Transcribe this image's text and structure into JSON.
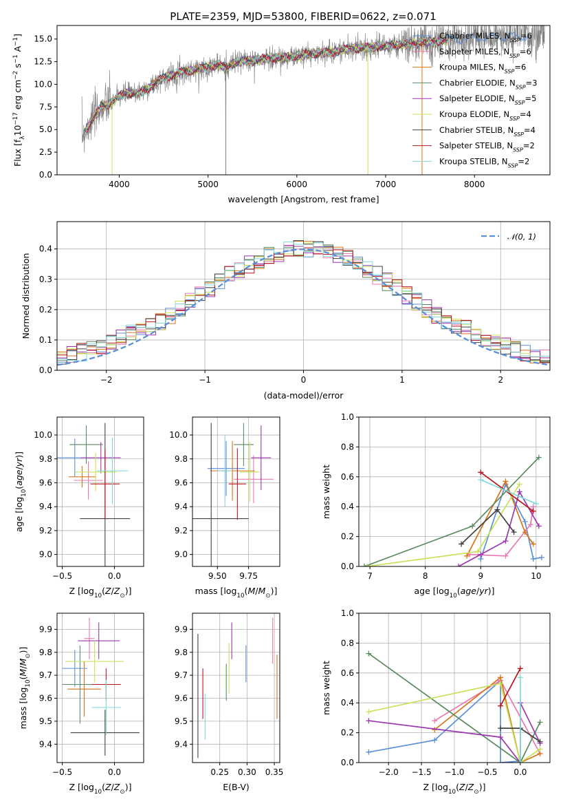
{
  "figure": {
    "title": "PLATE=2359, MJD=53800, FIBERID=0622, z=0.071"
  },
  "colors": {
    "spectrum": "#808080",
    "gaussian": "#5b8ed8",
    "grid": "#b0b0b0"
  },
  "chart_data": [
    {
      "id": "spectrum",
      "type": "line",
      "title": "PLATE=2359, MJD=53800, FIBERID=0622, z=0.071",
      "xlabel": "wavelength [Angstrom, rest frame]",
      "ylabel": "Flux [f_λ10^-17 erg cm^-2 s^-1 A^-1]",
      "xlim": [
        3300,
        8850
      ],
      "ylim": [
        0,
        16.5
      ],
      "xticks": [
        4000,
        5000,
        6000,
        7000,
        8000
      ],
      "yticks": [
        0.0,
        2.5,
        5.0,
        7.5,
        10.0,
        12.5,
        15.0
      ],
      "grid": false,
      "legend_position": "upper-right",
      "spectrum_x": [
        3580,
        3700,
        3800,
        3900,
        4000,
        4100,
        4200,
        4300,
        4400,
        4500,
        4600,
        4700,
        4800,
        4900,
        5000,
        5100,
        5200,
        5300,
        5400,
        5500,
        5600,
        5700,
        5800,
        5900,
        6000,
        6100,
        6200,
        6300,
        6400,
        6500,
        6600,
        6700,
        6800,
        6900,
        7000,
        7100,
        7200,
        7300,
        7400,
        7500,
        7600,
        7700,
        7800,
        7900,
        8000,
        8100,
        8200,
        8300,
        8400,
        8500,
        8600,
        8700,
        8800
      ],
      "spectrum_y": [
        4.3,
        6.2,
        7.5,
        7.9,
        8.7,
        9.0,
        9.0,
        9.4,
        10.1,
        10.7,
        11.0,
        11.4,
        11.5,
        11.7,
        11.9,
        12.2,
        11.8,
        12.4,
        12.6,
        12.6,
        12.7,
        12.9,
        12.9,
        13.0,
        13.1,
        13.3,
        13.4,
        13.5,
        13.6,
        13.8,
        13.9,
        14.0,
        14.0,
        14.2,
        14.2,
        14.3,
        14.4,
        14.5,
        14.6,
        14.7,
        14.8,
        14.9,
        15.0,
        15.0,
        15.1,
        15.1,
        15.2,
        15.2,
        15.2,
        15.3,
        15.3,
        15.4,
        15.4
      ],
      "series": [
        {
          "name": "Chabrier MILES, N_SSP=6",
          "color": "#5b8ed8"
        },
        {
          "name": "Salpeter MILES, N_SSP=6",
          "color": "#e879b0"
        },
        {
          "name": "Kroupa MILES, N_SSP=6",
          "color": "#d9731a"
        },
        {
          "name": "Chabrier ELODIE, N_SSP=3",
          "color": "#5a8a5f"
        },
        {
          "name": "Salpeter ELODIE, N_SSP=5",
          "color": "#9b35b0"
        },
        {
          "name": "Kroupa ELODIE, N_SSP=4",
          "color": "#c6e25a"
        },
        {
          "name": "Chabrier STELIB, N_SSP=4",
          "color": "#404040"
        },
        {
          "name": "Salpeter STELIB, N_SSP=2",
          "color": "#b8141c"
        },
        {
          "name": "Kroupa STELIB, N_SSP=2",
          "color": "#7fd8d8"
        }
      ]
    },
    {
      "id": "residuals",
      "type": "histogram",
      "xlabel": "(data-model)/error",
      "ylabel": "Normed distribution",
      "xlim": [
        -2.5,
        2.5
      ],
      "ylim": [
        0,
        0.49
      ],
      "xticks": [
        -2,
        -1,
        0,
        1,
        2
      ],
      "yticks": [
        0.0,
        0.1,
        0.2,
        0.3,
        0.4
      ],
      "grid": true,
      "legend": "𝒩(0, 1)",
      "legend_position": "upper-right",
      "bin_width": 0.1,
      "bin_start": -2.5,
      "gaussian": {
        "mu": 0,
        "sigma": 1
      }
    },
    {
      "id": "age_vs_Z",
      "type": "errorbar",
      "xlabel": "Z [log10(Z/Z⊙)]",
      "ylabel": "age [log10(age/yr)]",
      "xlim": [
        -0.55,
        0.28
      ],
      "ylim": [
        8.9,
        10.15
      ],
      "xticks": [
        -0.5,
        0.0
      ],
      "xticklabels": [
        "−0.5",
        "0.0"
      ],
      "yticks": [
        9.0,
        9.2,
        9.4,
        9.6,
        9.8,
        10.0
      ],
      "grid": true,
      "points": [
        {
          "x": -0.38,
          "xerr": 0.2,
          "y": 9.81,
          "yerr": 0.16
        },
        {
          "x": -0.25,
          "xerr": 0.14,
          "y": 9.62,
          "yerr": 0.16
        },
        {
          "x": -0.31,
          "xerr": 0.13,
          "y": 9.65,
          "yerr": 0.09
        },
        {
          "x": -0.27,
          "xerr": 0.16,
          "y": 9.92,
          "yerr": 0.16
        },
        {
          "x": -0.13,
          "xerr": 0.19,
          "y": 9.81,
          "yerr": 0.13
        },
        {
          "x": -0.18,
          "xerr": 0.2,
          "y": 9.69,
          "yerr": 0.16
        },
        {
          "x": -0.09,
          "xerr": 0.24,
          "y": 9.3,
          "yerr": 0.8
        },
        {
          "x": -0.09,
          "xerr": 0.14,
          "y": 9.59,
          "yerr": 0.29
        },
        {
          "x": -0.02,
          "xerr": 0.15,
          "y": 9.7,
          "yerr": 0.28
        }
      ]
    },
    {
      "id": "age_vs_mass",
      "type": "errorbar",
      "xlabel": "mass [log10(M/M⊙)]",
      "ylabel": "",
      "xlim": [
        9.3,
        10.0
      ],
      "ylim": [
        8.9,
        10.15
      ],
      "xticks": [
        9.5,
        9.75
      ],
      "yticks": [
        9.0,
        9.2,
        9.4,
        9.6,
        9.8,
        10.0
      ],
      "grid": true,
      "points": [
        {
          "x": 9.57,
          "xerr": 0.15,
          "y": 9.72,
          "yerr": 0.23
        },
        {
          "x": 9.79,
          "xerr": 0.16,
          "y": 9.63,
          "yerr": 0.2
        },
        {
          "x": 9.62,
          "xerr": 0.18,
          "y": 9.7,
          "yerr": 0.25
        },
        {
          "x": 9.71,
          "xerr": 0.08,
          "y": 9.92,
          "yerr": 0.18
        },
        {
          "x": 9.85,
          "xerr": 0.08,
          "y": 9.81,
          "yerr": 0.27
        },
        {
          "x": 9.76,
          "xerr": 0.08,
          "y": 9.69,
          "yerr": 0.25
        },
        {
          "x": 9.45,
          "xerr": 0.3,
          "y": 9.3,
          "yerr": 0.8
        },
        {
          "x": 9.66,
          "xerr": 0.07,
          "y": 9.59,
          "yerr": 0.3
        },
        {
          "x": 9.56,
          "xerr": 0.06,
          "y": 9.7,
          "yerr": 0.3
        }
      ]
    },
    {
      "id": "weight_vs_age",
      "type": "line",
      "xlabel": "age [log10(age/yr)]",
      "ylabel": "mass weight",
      "xlim": [
        6.8,
        10.25
      ],
      "ylim": [
        0,
        1.0
      ],
      "xticks": [
        7,
        8,
        9,
        10
      ],
      "yticks": [
        0.0,
        0.2,
        0.4,
        0.6,
        0.8,
        1.0
      ],
      "grid": true,
      "series": [
        {
          "color": "#5b8ed8",
          "x": [
            9.0,
            9.45,
            9.8,
            9.95,
            10.1
          ],
          "y": [
            0.05,
            0.55,
            0.3,
            0.05,
            0.06
          ]
        },
        {
          "color": "#e879b0",
          "x": [
            8.8,
            9.45,
            9.9,
            9.95
          ],
          "y": [
            0.08,
            0.07,
            0.28,
            0.4
          ]
        },
        {
          "color": "#d9731a",
          "x": [
            8.75,
            9.45,
            9.8,
            9.95
          ],
          "y": [
            0.07,
            0.57,
            0.23,
            0.15
          ]
        },
        {
          "color": "#5a8a5f",
          "x": [
            6.9,
            8.85,
            10.05
          ],
          "y": [
            0.0,
            0.27,
            0.73
          ]
        },
        {
          "color": "#9b35b0",
          "x": [
            8.6,
            9.0,
            9.45,
            9.7,
            10.05
          ],
          "y": [
            0.0,
            0.08,
            0.17,
            0.5,
            0.27
          ]
        },
        {
          "color": "#c6e25a",
          "x": [
            6.95,
            8.95,
            9.7
          ],
          "y": [
            0.0,
            0.1,
            0.55
          ]
        },
        {
          "color": "#404040",
          "x": [
            8.65,
            9.3,
            9.6
          ],
          "y": [
            0.15,
            0.38,
            0.23
          ]
        },
        {
          "color": "#b8141c",
          "x": [
            9.0,
            9.95
          ],
          "y": [
            0.63,
            0.37
          ]
        },
        {
          "color": "#7fd8d8",
          "x": [
            9.0,
            10.0
          ],
          "y": [
            0.58,
            0.42
          ]
        }
      ]
    },
    {
      "id": "mass_vs_Z",
      "type": "errorbar",
      "xlabel": "Z [log10(Z/Z⊙)]",
      "ylabel": "mass [log10(M/M⊙)]",
      "xlim": [
        -0.55,
        0.28
      ],
      "ylim": [
        9.32,
        9.97
      ],
      "xticks": [
        -0.5,
        0.0
      ],
      "xticklabels": [
        "−0.5",
        "0.0"
      ],
      "yticks": [
        9.4,
        9.5,
        9.6,
        9.7,
        9.8,
        9.9
      ],
      "grid": true,
      "points": [
        {
          "x": -0.38,
          "xerr": 0.12,
          "y": 9.73,
          "yerr": 0.08
        },
        {
          "x": -0.24,
          "xerr": 0.05,
          "y": 9.86,
          "yerr": 0.09
        },
        {
          "x": -0.29,
          "xerr": 0.16,
          "y": 9.64,
          "yerr": 0.12
        },
        {
          "x": -0.33,
          "xerr": 0.17,
          "y": 9.66,
          "yerr": 0.17
        },
        {
          "x": -0.15,
          "xerr": 0.2,
          "y": 9.85,
          "yerr": 0.08
        },
        {
          "x": -0.19,
          "xerr": 0.28,
          "y": 9.76,
          "yerr": 0.09
        },
        {
          "x": -0.09,
          "xerr": 0.33,
          "y": 9.45,
          "yerr": 0.1
        },
        {
          "x": -0.08,
          "xerr": 0.14,
          "y": 9.66,
          "yerr": 0.07
        },
        {
          "x": -0.08,
          "xerr": 0.14,
          "y": 9.56,
          "yerr": 0.12
        }
      ]
    },
    {
      "id": "mass_vs_ebv",
      "type": "errorbar",
      "xlabel": "E(B-V)",
      "ylabel": "",
      "xlim": [
        0.2,
        0.36
      ],
      "ylim": [
        9.32,
        9.97
      ],
      "xticks": [
        0.25,
        0.3,
        0.35
      ],
      "yticks": [
        9.4,
        9.5,
        9.6,
        9.7,
        9.8,
        9.9
      ],
      "grid": true,
      "points": [
        {
          "x": 0.298,
          "xerr": 0,
          "y": 9.75,
          "yerr": 0.08
        },
        {
          "x": 0.347,
          "xerr": 0,
          "y": 9.85,
          "yerr": 0.1
        },
        {
          "x": 0.355,
          "xerr": 0,
          "y": 9.65,
          "yerr": 0.14
        },
        {
          "x": 0.262,
          "xerr": 0,
          "y": 9.67,
          "yerr": 0.08
        },
        {
          "x": 0.272,
          "xerr": 0,
          "y": 9.85,
          "yerr": 0.08
        },
        {
          "x": 0.267,
          "xerr": 0,
          "y": 9.73,
          "yerr": 0.11
        },
        {
          "x": 0.21,
          "xerr": 0,
          "y": 9.61,
          "yerr": 0.27
        },
        {
          "x": 0.219,
          "xerr": 0,
          "y": 9.62,
          "yerr": 0.11
        },
        {
          "x": 0.223,
          "xerr": 0,
          "y": 9.52,
          "yerr": 0.1
        }
      ]
    },
    {
      "id": "weight_vs_Z",
      "type": "line",
      "xlabel": "Z [log10(Z/Z⊙)]",
      "ylabel": "mass weight",
      "xlim": [
        -2.45,
        0.45
      ],
      "ylim": [
        0,
        1.0
      ],
      "xticks": [
        -2.0,
        -1.5,
        -1.0,
        -0.5,
        0.0
      ],
      "xticklabels": [
        "−2.0",
        "−1.5",
        "−1.0",
        "−0.5",
        "0.0"
      ],
      "yticks": [
        0.0,
        0.2,
        0.4,
        0.6,
        0.8,
        1.0
      ],
      "grid": true,
      "series": [
        {
          "color": "#5b8ed8",
          "x": [
            -2.3,
            -1.3,
            -0.3,
            -0.3,
            0.0
          ],
          "y": [
            0.07,
            0.15,
            0.55,
            0.0,
            0.01
          ]
        },
        {
          "color": "#e879b0",
          "x": [
            -1.3,
            -0.3,
            0.3
          ],
          "y": [
            0.28,
            0.55,
            0.06
          ]
        },
        {
          "color": "#d9731a",
          "x": [
            -1.3,
            -0.3,
            0.0,
            0.3
          ],
          "y": [
            0.22,
            0.57,
            0.0,
            0.06
          ]
        },
        {
          "color": "#5a8a5f",
          "x": [
            -2.3,
            0.0,
            0.3
          ],
          "y": [
            0.73,
            0.0,
            0.27
          ]
        },
        {
          "color": "#9b35b0",
          "x": [
            -2.3,
            -0.3,
            0.0,
            0.0,
            0.3
          ],
          "y": [
            0.28,
            0.17,
            0.0,
            0.4,
            0.13
          ]
        },
        {
          "color": "#c6e25a",
          "x": [
            -2.3,
            -0.3,
            0.0,
            0.3
          ],
          "y": [
            0.34,
            0.53,
            0.0,
            0.09
          ]
        },
        {
          "color": "#404040",
          "x": [
            -0.3,
            0.0,
            0.3
          ],
          "y": [
            0.23,
            0.23,
            0.14
          ]
        },
        {
          "color": "#b8141c",
          "x": [
            -0.3,
            0.0
          ],
          "y": [
            0.38,
            0.63
          ]
        },
        {
          "color": "#7fd8d8",
          "x": [
            0.0,
            0.0
          ],
          "y": [
            0.0,
            0.57
          ]
        }
      ]
    }
  ]
}
